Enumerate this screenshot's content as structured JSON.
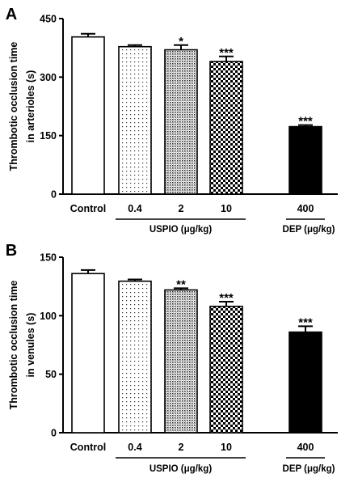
{
  "chart_data": [
    {
      "type": "bar",
      "panel": "A",
      "ylabel_lines": [
        "Thrombotic occlusion time",
        "in arterioles (s)"
      ],
      "ylim": [
        0,
        450
      ],
      "yticks": [
        "0",
        "150",
        "300",
        "450"
      ],
      "categories": [
        "Control",
        "0.4",
        "2",
        "10",
        "400"
      ],
      "values": [
        403,
        378,
        370,
        340,
        173
      ],
      "errors": [
        8,
        4,
        12,
        13,
        4
      ],
      "significance": [
        "",
        "",
        "*",
        "***",
        "***"
      ],
      "bar_styles": [
        "white",
        "sparse-dots",
        "dense-dots",
        "checker",
        "black"
      ],
      "group_labels": [
        {
          "label": "USPIO (μg/kg)",
          "categories": [
            "0.4",
            "2",
            "10"
          ]
        },
        {
          "label": "DEP (μg/kg)",
          "categories": [
            "400"
          ]
        }
      ]
    },
    {
      "type": "bar",
      "panel": "B",
      "ylabel_lines": [
        "Thrombotic occlusion time",
        "in venules (s)"
      ],
      "ylim": [
        0,
        150
      ],
      "yticks": [
        "0",
        "50",
        "100",
        "150"
      ],
      "categories": [
        "Control",
        "0.4",
        "2",
        "10",
        "400"
      ],
      "values": [
        136,
        129.5,
        122,
        108,
        86
      ],
      "errors": [
        3,
        1.5,
        1.5,
        4,
        5
      ],
      "significance": [
        "",
        "",
        "**",
        "***",
        "***"
      ],
      "bar_styles": [
        "white",
        "sparse-dots",
        "dense-dots",
        "checker",
        "black"
      ],
      "group_labels": [
        {
          "label": "USPIO (μg/kg)",
          "categories": [
            "0.4",
            "2",
            "10"
          ]
        },
        {
          "label": "DEP (μg/kg)",
          "categories": [
            "400"
          ]
        }
      ]
    }
  ]
}
